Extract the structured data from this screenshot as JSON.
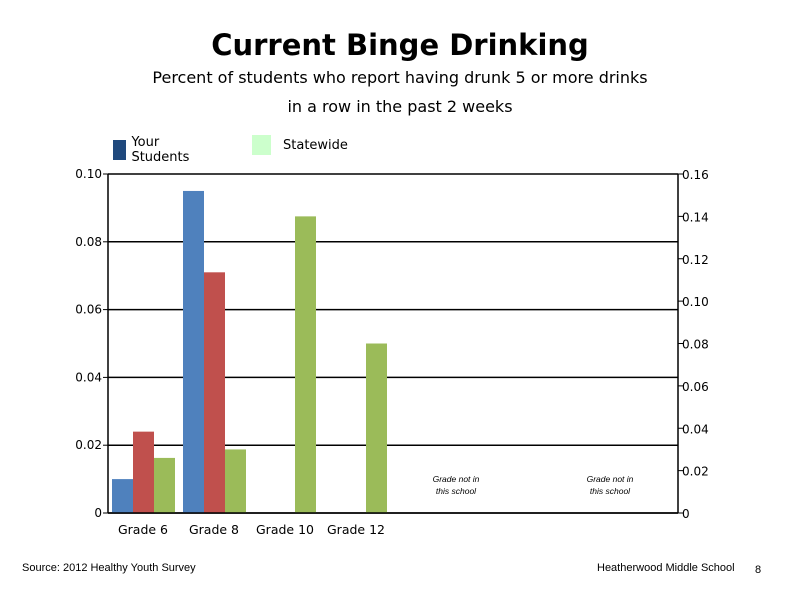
{
  "chart_data": {
    "type": "bar",
    "title": "Current Binge Drinking",
    "subtitle_line1": "Percent of students who report having drunk 5 or more drinks",
    "subtitle_line2": "in a row in the past 2 weeks",
    "categories": [
      "Grade 6",
      "Grade 8",
      "Grade 10",
      "Grade 12"
    ],
    "series": [
      {
        "values": [
          0.01,
          0.095,
          null,
          null
        ],
        "color": "#4f81bd",
        "axis": "left"
      },
      {
        "values": [
          0.024,
          0.071,
          null,
          null
        ],
        "color": "#c0504d",
        "axis": "left"
      },
      {
        "values": [
          0.026,
          0.03,
          0.14,
          0.08
        ],
        "color": "#9bbb59",
        "axis": "right"
      }
    ],
    "legend": [
      {
        "label": "Your Students",
        "color": "#1f497d"
      },
      {
        "label": "Statewide",
        "color": "#ccffcc"
      }
    ],
    "legend_position": "top-left",
    "y_left": {
      "range": [
        0,
        0.1
      ],
      "ticks": [
        "0",
        "0.02",
        "0.04",
        "0.06",
        "0.08",
        "0.10"
      ]
    },
    "y_right": {
      "range": [
        0,
        0.16
      ],
      "ticks": [
        "0",
        "0.02",
        "0.04",
        "0.06",
        "0.08",
        "0.10",
        "0.12",
        "0.14",
        "0.16"
      ]
    },
    "gridlines": true,
    "annotations": [
      {
        "line1": "Grade not in",
        "line2": "this school"
      },
      {
        "line1": "Grade not in",
        "line2": "this school"
      }
    ]
  },
  "footer": {
    "source": "Source: 2012 Healthy Youth Survey",
    "school": "Heatherwood Middle  School",
    "page": "8"
  }
}
